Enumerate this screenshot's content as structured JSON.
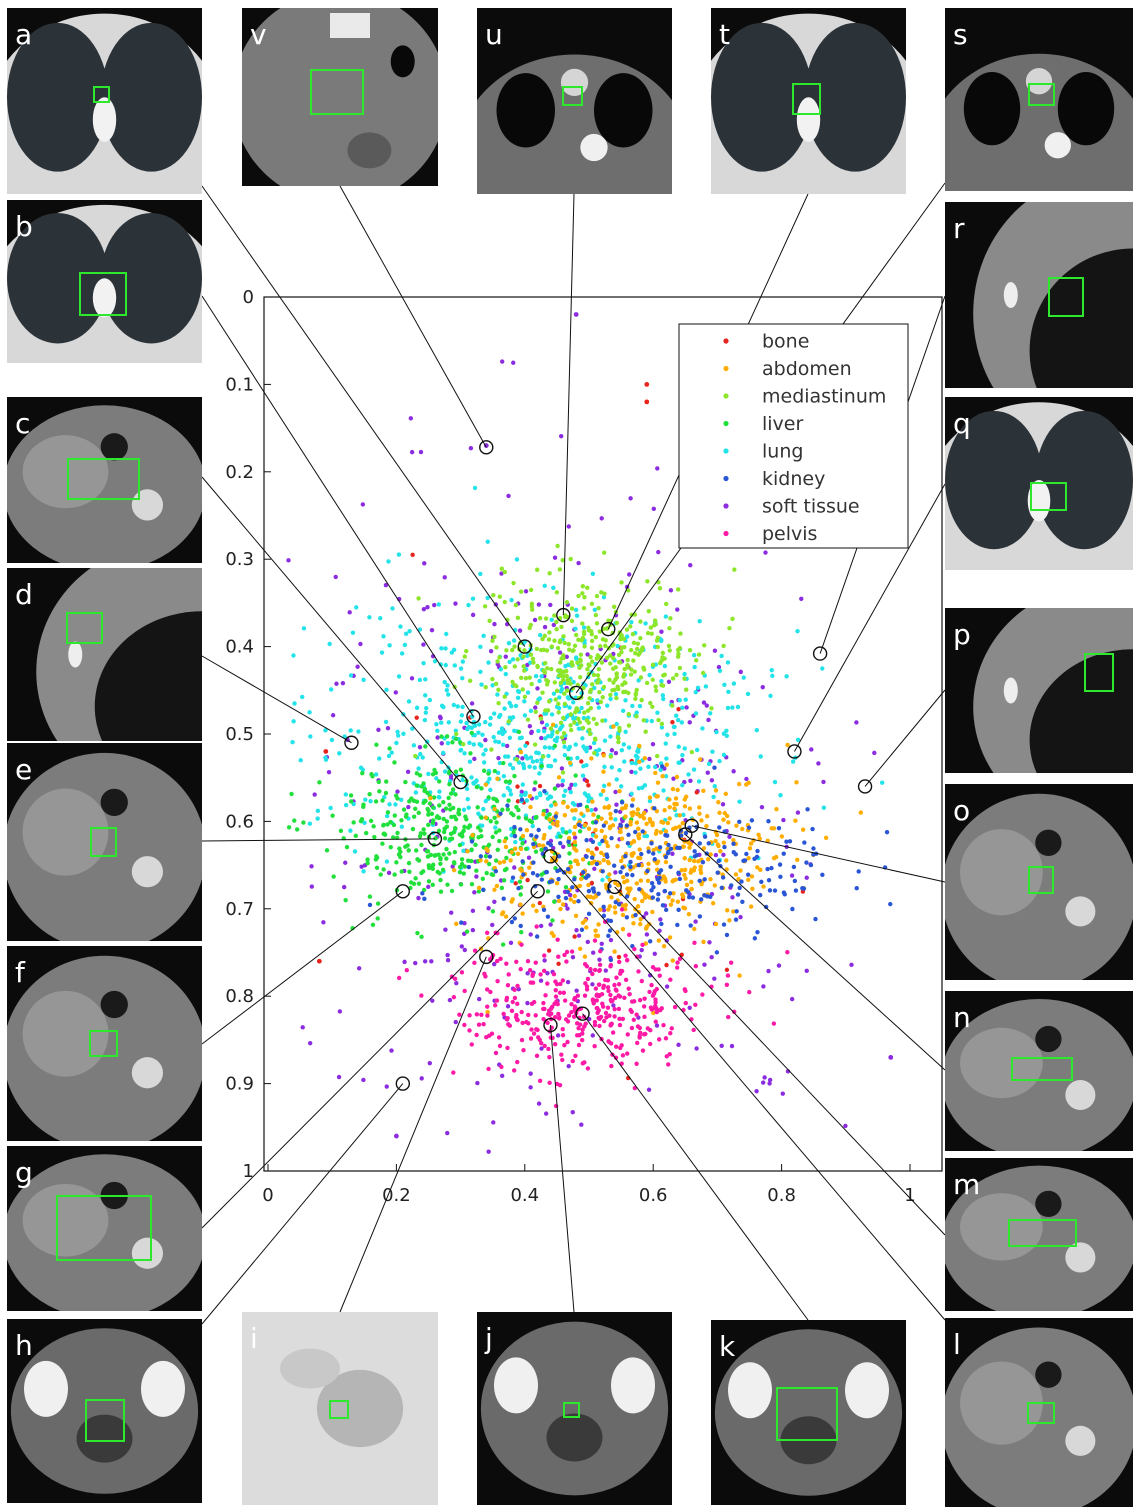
{
  "figure": {
    "panel_letters": [
      "a",
      "b",
      "c",
      "d",
      "e",
      "f",
      "g",
      "h",
      "i",
      "j",
      "k",
      "l",
      "m",
      "n",
      "o",
      "p",
      "q",
      "r",
      "s",
      "t",
      "u",
      "v"
    ]
  },
  "chart_data": {
    "type": "scatter",
    "xlim": [
      0,
      1
    ],
    "ylim": [
      0,
      1
    ],
    "y_inverted": true,
    "xticks": [
      0,
      0.2,
      0.4,
      0.6,
      0.8,
      1
    ],
    "yticks": [
      0,
      0.1,
      0.2,
      0.3,
      0.4,
      0.5,
      0.6,
      0.7,
      0.8,
      0.9,
      1
    ],
    "xtick_labels": [
      "0",
      "0.2",
      "0.4",
      "0.6",
      "0.8",
      "1"
    ],
    "ytick_labels": [
      "0",
      "0.1",
      "0.2",
      "0.3",
      "0.4",
      "0.5",
      "0.6",
      "0.7",
      "0.8",
      "0.9",
      "1"
    ],
    "grid": false,
    "legend_position": "top-right",
    "series": [
      {
        "name": "bone",
        "color": "#e8241e",
        "center": [
          0.52,
          0.6
        ],
        "spread": [
          0.13,
          0.12
        ],
        "count": 40,
        "extra": [
          [
            0.59,
            0.1
          ],
          [
            0.59,
            0.12
          ],
          [
            0.09,
            0.52
          ],
          [
            0.08,
            0.76
          ]
        ]
      },
      {
        "name": "abdomen",
        "color": "#ffae00",
        "center": [
          0.56,
          0.64
        ],
        "spread": [
          0.11,
          0.05
        ],
        "count": 480,
        "extra": []
      },
      {
        "name": "mediastinum",
        "color": "#8ee62a",
        "center": [
          0.5,
          0.42
        ],
        "spread": [
          0.08,
          0.05
        ],
        "count": 420,
        "extra": []
      },
      {
        "name": "liver",
        "color": "#22e03b",
        "center": [
          0.28,
          0.61
        ],
        "spread": [
          0.1,
          0.045
        ],
        "count": 380,
        "extra": []
      },
      {
        "name": "lung",
        "color": "#22e3e8",
        "center": [
          0.42,
          0.5
        ],
        "spread": [
          0.17,
          0.07
        ],
        "count": 680,
        "extra": []
      },
      {
        "name": "kidney",
        "color": "#2a56d6",
        "center": [
          0.6,
          0.66
        ],
        "spread": [
          0.15,
          0.04
        ],
        "count": 260,
        "extra": []
      },
      {
        "name": "soft tissue",
        "color": "#8b2ce0",
        "center": [
          0.45,
          0.6
        ],
        "spread": [
          0.22,
          0.2
        ],
        "count": 420,
        "extra": [
          [
            0.48,
            0.02
          ],
          [
            0.34,
            0.17
          ],
          [
            0.97,
            0.87
          ],
          [
            0.2,
            0.96
          ]
        ]
      },
      {
        "name": "pelvis",
        "color": "#ff1aa6",
        "center": [
          0.49,
          0.81
        ],
        "spread": [
          0.1,
          0.035
        ],
        "count": 380,
        "extra": []
      }
    ],
    "highlighted_points": [
      {
        "panel": "a",
        "x": 0.4,
        "y": 0.4
      },
      {
        "panel": "b",
        "x": 0.32,
        "y": 0.48
      },
      {
        "panel": "c",
        "x": 0.3,
        "y": 0.555
      },
      {
        "panel": "d",
        "x": 0.13,
        "y": 0.51
      },
      {
        "panel": "e",
        "x": 0.26,
        "y": 0.62
      },
      {
        "panel": "f",
        "x": 0.21,
        "y": 0.68
      },
      {
        "panel": "g",
        "x": 0.42,
        "y": 0.68
      },
      {
        "panel": "h",
        "x": 0.21,
        "y": 0.9
      },
      {
        "panel": "i",
        "x": 0.34,
        "y": 0.755
      },
      {
        "panel": "j",
        "x": 0.44,
        "y": 0.833
      },
      {
        "panel": "k",
        "x": 0.49,
        "y": 0.82
      },
      {
        "panel": "l",
        "x": 0.44,
        "y": 0.64
      },
      {
        "panel": "m",
        "x": 0.54,
        "y": 0.675
      },
      {
        "panel": "n",
        "x": 0.65,
        "y": 0.615
      },
      {
        "panel": "o",
        "x": 0.66,
        "y": 0.605
      },
      {
        "panel": "p",
        "x": 0.93,
        "y": 0.56
      },
      {
        "panel": "q",
        "x": 0.82,
        "y": 0.52
      },
      {
        "panel": "r",
        "x": 0.86,
        "y": 0.408
      },
      {
        "panel": "s",
        "x": 0.48,
        "y": 0.453
      },
      {
        "panel": "t",
        "x": 0.53,
        "y": 0.38
      },
      {
        "panel": "u",
        "x": 0.46,
        "y": 0.364
      },
      {
        "panel": "v",
        "x": 0.34,
        "y": 0.172
      }
    ]
  }
}
